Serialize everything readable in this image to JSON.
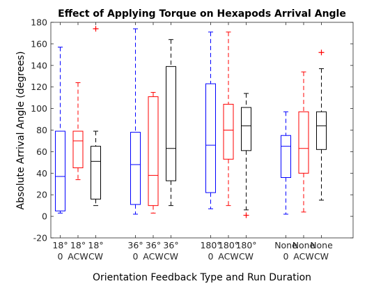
{
  "chart_data": {
    "type": "box",
    "title": "Effect of Applying Torque on Hexapods Arrival Angle",
    "xlabel": "Orientation Feedback Type and Run Duration",
    "ylabel": "Absolute Arrival Angle (degrees)",
    "ylim": [
      -20,
      180
    ],
    "yticks": [
      "-20",
      "0",
      "20",
      "40",
      "60",
      "80",
      "100",
      "120",
      "140",
      "160",
      "180"
    ],
    "grid": false,
    "colors": {
      "0": "#0000ff",
      "ACW": "#ff0000",
      "CW": "#000000"
    },
    "groups": [
      "18°",
      "36°",
      "180°",
      "None"
    ],
    "boxes": [
      {
        "group": "18°",
        "sub": "0",
        "line1": "18°",
        "line2": "0",
        "whisker_low": 3,
        "q1": 5,
        "median": 37,
        "q3": 79,
        "whisker_high": 157,
        "outliers": []
      },
      {
        "group": "18°",
        "sub": "ACW",
        "line1": "18°",
        "line2": "ACW",
        "whisker_low": 34,
        "q1": 45,
        "median": 70,
        "q3": 79,
        "whisker_high": 124,
        "outliers": []
      },
      {
        "group": "18°",
        "sub": "CW",
        "line1": "18°",
        "line2": "CW",
        "whisker_low": 10,
        "q1": 16,
        "median": 51,
        "q3": 65,
        "whisker_high": 79,
        "outliers": [
          174
        ]
      },
      {
        "group": "36°",
        "sub": "0",
        "line1": "36°",
        "line2": "0",
        "whisker_low": 2,
        "q1": 11,
        "median": 48,
        "q3": 78,
        "whisker_high": 174,
        "outliers": []
      },
      {
        "group": "36°",
        "sub": "ACW",
        "line1": "36°",
        "line2": "ACW",
        "whisker_low": 3,
        "q1": 10,
        "median": 38,
        "q3": 111,
        "whisker_high": 115,
        "outliers": []
      },
      {
        "group": "36°",
        "sub": "CW",
        "line1": "36°",
        "line2": "CW",
        "whisker_low": 10,
        "q1": 33,
        "median": 63,
        "q3": 139,
        "whisker_high": 164,
        "outliers": []
      },
      {
        "group": "180°",
        "sub": "0",
        "line1": "180°",
        "line2": "0",
        "whisker_low": 7,
        "q1": 22,
        "median": 66,
        "q3": 123,
        "whisker_high": 171,
        "outliers": []
      },
      {
        "group": "180°",
        "sub": "ACW",
        "line1": "180°",
        "line2": "ACW",
        "whisker_low": 10,
        "q1": 53,
        "median": 80,
        "q3": 104,
        "whisker_high": 171,
        "outliers": []
      },
      {
        "group": "180°",
        "sub": "CW",
        "line1": "180°",
        "line2": "CW",
        "whisker_low": 6,
        "q1": 61,
        "median": 84,
        "q3": 101,
        "whisker_high": 114,
        "outliers": [
          1
        ]
      },
      {
        "group": "None",
        "sub": "0",
        "line1": "None",
        "line2": "0",
        "whisker_low": 2,
        "q1": 36,
        "median": 65,
        "q3": 75,
        "whisker_high": 97,
        "outliers": []
      },
      {
        "group": "None",
        "sub": "ACW",
        "line1": "None",
        "line2": "ACW",
        "whisker_low": 4,
        "q1": 40,
        "median": 63,
        "q3": 97,
        "whisker_high": 134,
        "outliers": []
      },
      {
        "group": "None",
        "sub": "CW",
        "line1": "None",
        "line2": "CW",
        "whisker_low": 15,
        "q1": 62,
        "median": 84,
        "q3": 97,
        "whisker_high": 137,
        "outliers": [
          152
        ]
      }
    ]
  }
}
